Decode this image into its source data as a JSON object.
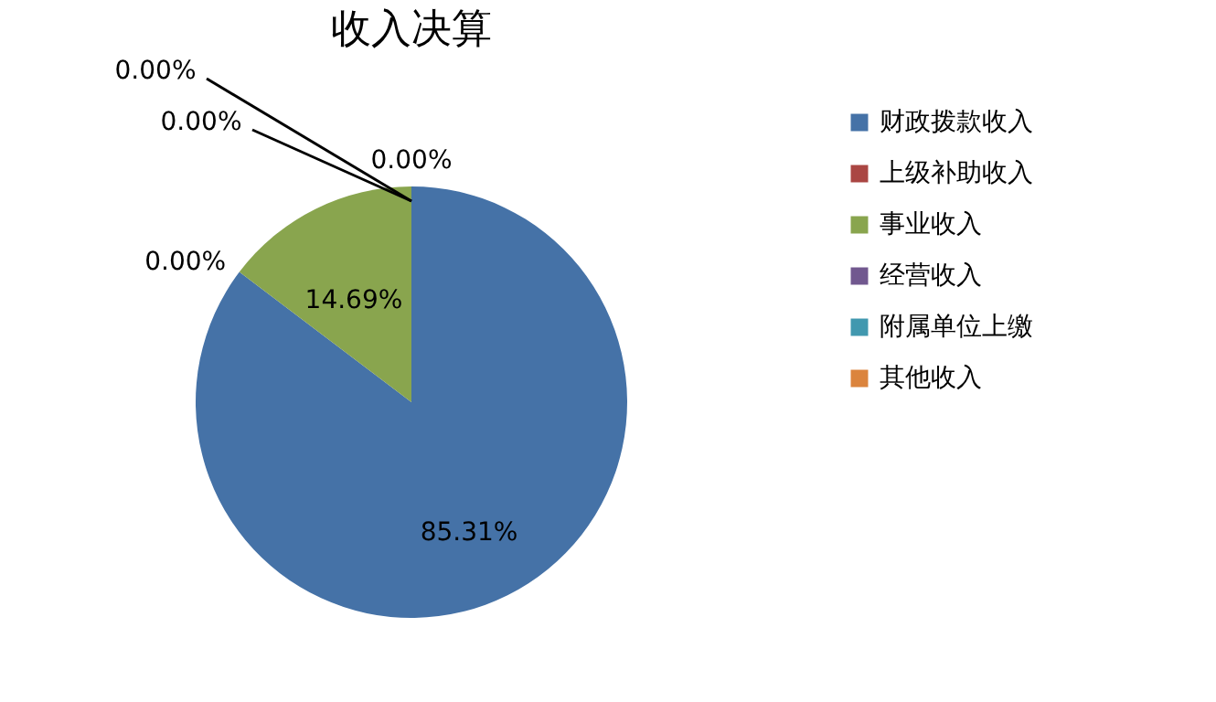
{
  "chart_data": {
    "type": "pie",
    "title": "收入决算",
    "categories": [
      "财政拨款收入",
      "上级补助收入",
      "事业收入",
      "经营收入",
      "附属单位上缴",
      "其他收入"
    ],
    "values": [
      85.31,
      0.0,
      14.69,
      0.0,
      0.0,
      0.0
    ],
    "value_labels": [
      "85.31%",
      "0.00%",
      "14.69%",
      "0.00%",
      "0.00%",
      "0.00%"
    ],
    "colors": [
      "#4572a7",
      "#aa4643",
      "#89a54e",
      "#71588f",
      "#4198af",
      "#db843d"
    ],
    "legend": "right"
  }
}
